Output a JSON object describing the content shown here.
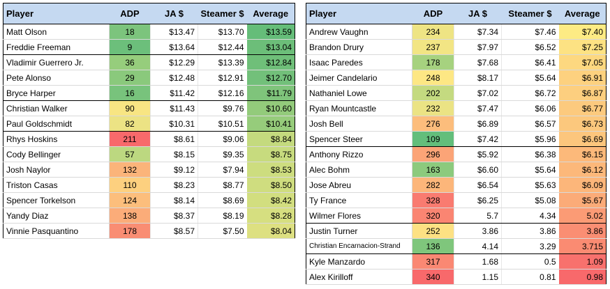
{
  "headers": {
    "player": "Player",
    "adp": "ADP",
    "ja": "JA $",
    "steamer": "Steamer $",
    "average": "Average"
  },
  "left_table": {
    "tier_breaks_after": [
      1,
      4,
      6
    ],
    "rows": [
      {
        "player": "Matt Olson",
        "adp": "18",
        "ja": "$13.47",
        "steamer": "$13.70",
        "average": "$13.59",
        "adp_color": "#7cc47d",
        "avg_color": "#65bd79"
      },
      {
        "player": "Freddie Freeman",
        "adp": "9",
        "ja": "$13.64",
        "steamer": "$12.44",
        "average": "$13.04",
        "adp_color": "#6cbf7b",
        "avg_color": "#6cbe79"
      },
      {
        "player": "Vladimir Guerrero Jr.",
        "adp": "36",
        "ja": "$12.29",
        "steamer": "$13.39",
        "average": "$12.84",
        "adp_color": "#96cd7c",
        "avg_color": "#6fbf79"
      },
      {
        "player": "Pete Alonso",
        "adp": "29",
        "ja": "$12.48",
        "steamer": "$12.91",
        "average": "$12.70",
        "adp_color": "#8ac97c",
        "avg_color": "#72c07a"
      },
      {
        "player": "Bryce Harper",
        "adp": "16",
        "ja": "$11.42",
        "steamer": "$12.16",
        "average": "$11.79",
        "adp_color": "#78c37c",
        "avg_color": "#7fc47b"
      },
      {
        "player": "Christian Walker",
        "adp": "90",
        "ja": "$11.43",
        "steamer": "$9.76",
        "average": "$10.60",
        "adp_color": "#f8e583",
        "avg_color": "#93cb7b"
      },
      {
        "player": "Paul Goldschmidt",
        "adp": "82",
        "ja": "$10.31",
        "steamer": "$10.51",
        "average": "$10.41",
        "adp_color": "#ece384",
        "avg_color": "#96cc7b"
      },
      {
        "player": "Rhys Hoskins",
        "adp": "211",
        "ja": "$8.61",
        "steamer": "$9.06",
        "average": "$8.84",
        "adp_color": "#f8696b",
        "avg_color": "#c4da7e"
      },
      {
        "player": "Cody Bellinger",
        "adp": "57",
        "ja": "$8.15",
        "steamer": "$9.35",
        "average": "$8.75",
        "adp_color": "#bcd880",
        "avg_color": "#c7db7e"
      },
      {
        "player": "Josh Naylor",
        "adp": "132",
        "ja": "$9.12",
        "steamer": "$7.94",
        "average": "$8.53",
        "adp_color": "#fbb47a",
        "avg_color": "#cddd7f"
      },
      {
        "player": "Triston Casas",
        "adp": "110",
        "ja": "$8.23",
        "steamer": "$8.77",
        "average": "$8.50",
        "adp_color": "#fdd07f",
        "avg_color": "#cfdd7f"
      },
      {
        "player": "Spencer Torkelson",
        "adp": "124",
        "ja": "$8.14",
        "steamer": "$8.69",
        "average": "$8.42",
        "adp_color": "#fcbe7c",
        "avg_color": "#d2de7f"
      },
      {
        "player": "Yandy Diaz",
        "adp": "138",
        "ja": "$8.37",
        "steamer": "$8.19",
        "average": "$8.28",
        "adp_color": "#fbac79",
        "avg_color": "#d6df80"
      },
      {
        "player": "Vinnie Pasquantino",
        "adp": "178",
        "ja": "$8.57",
        "steamer": "$7.50",
        "average": "$8.04",
        "adp_color": "#f98d73",
        "avg_color": "#dde081"
      }
    ]
  },
  "right_table": {
    "tier_breaks_after": [
      7,
      12,
      14
    ],
    "rows": [
      {
        "player": "Andrew Vaughn",
        "adp": "234",
        "ja": "$7.34",
        "steamer": "$7.46",
        "average": "$7.40",
        "adp_color": "#eee484",
        "avg_color": "#fdeb84"
      },
      {
        "player": "Brandon Drury",
        "adp": "237",
        "ja": "$7.97",
        "steamer": "$6.52",
        "average": "$7.25",
        "adp_color": "#f2e584",
        "avg_color": "#fde283"
      },
      {
        "player": "Isaac Paredes",
        "adp": "178",
        "ja": "$7.68",
        "steamer": "$6.41",
        "average": "$7.05",
        "adp_color": "#a6d27f",
        "avg_color": "#fdd880"
      },
      {
        "player": "Jeimer Candelario",
        "adp": "248",
        "ja": "$8.17",
        "steamer": "$5.64",
        "average": "$6.91",
        "adp_color": "#fde784",
        "avg_color": "#fdd17f"
      },
      {
        "player": "Nathaniel Lowe",
        "adp": "202",
        "ja": "$7.02",
        "steamer": "$6.72",
        "average": "$6.87",
        "adp_color": "#c4da80",
        "avg_color": "#fdcf7f"
      },
      {
        "player": "Ryan Mountcastle",
        "adp": "232",
        "ja": "$7.47",
        "steamer": "$6.06",
        "average": "$6.77",
        "adp_color": "#ebe384",
        "avg_color": "#fcca7e"
      },
      {
        "player": "Josh Bell",
        "adp": "276",
        "ja": "$6.89",
        "steamer": "$6.57",
        "average": "$6.73",
        "adp_color": "#fcbd7c",
        "avg_color": "#fcc87d"
      },
      {
        "player": "Spencer Steer",
        "adp": "109",
        "ja": "$7.42",
        "steamer": "$5.96",
        "average": "$6.69",
        "adp_color": "#63be7b",
        "avg_color": "#fcc67d"
      },
      {
        "player": "Anthony Rizzo",
        "adp": "296",
        "ja": "$5.92",
        "steamer": "$6.38",
        "average": "$6.15",
        "adp_color": "#fba477",
        "avg_color": "#fcb97a"
      },
      {
        "player": "Alec Bohm",
        "adp": "163",
        "ja": "$6.60",
        "steamer": "$5.64",
        "average": "$6.12",
        "adp_color": "#8cca7d",
        "avg_color": "#fcb87a"
      },
      {
        "player": "Jose Abreu",
        "adp": "282",
        "ja": "$6.54",
        "steamer": "$5.63",
        "average": "$6.09",
        "adp_color": "#fcb67a",
        "avg_color": "#fcb67a"
      },
      {
        "player": "Ty France",
        "adp": "328",
        "ja": "$6.25",
        "steamer": "$5.08",
        "average": "$5.67",
        "adp_color": "#f97b70",
        "avg_color": "#fbab78"
      },
      {
        "player": "Wilmer Flores",
        "adp": "320",
        "ja": "5.7",
        "steamer": "4.34",
        "average": "5.02",
        "adp_color": "#fa8572",
        "avg_color": "#fb9b75"
      },
      {
        "player": "Justin Turner",
        "adp": "252",
        "ja": "3.86",
        "steamer": "3.86",
        "average": "3.86",
        "adp_color": "#fde183",
        "avg_color": "#fa8e73"
      },
      {
        "player": "Christian Encarnacion-Strand",
        "adp": "136",
        "ja": "4.14",
        "steamer": "3.29",
        "average": "3.715",
        "adp_color": "#7fc67c",
        "avg_color": "#fa8b72",
        "small": true
      },
      {
        "player": "Kyle Manzardo",
        "adp": "317",
        "ja": "1.68",
        "steamer": "0.5",
        "average": "1.09",
        "adp_color": "#fa8873",
        "avg_color": "#f8716d"
      },
      {
        "player": "Alex Kirilloff",
        "adp": "340",
        "ja": "1.15",
        "steamer": "0.81",
        "average": "0.98",
        "adp_color": "#f8696b",
        "avg_color": "#f8696b"
      }
    ]
  }
}
